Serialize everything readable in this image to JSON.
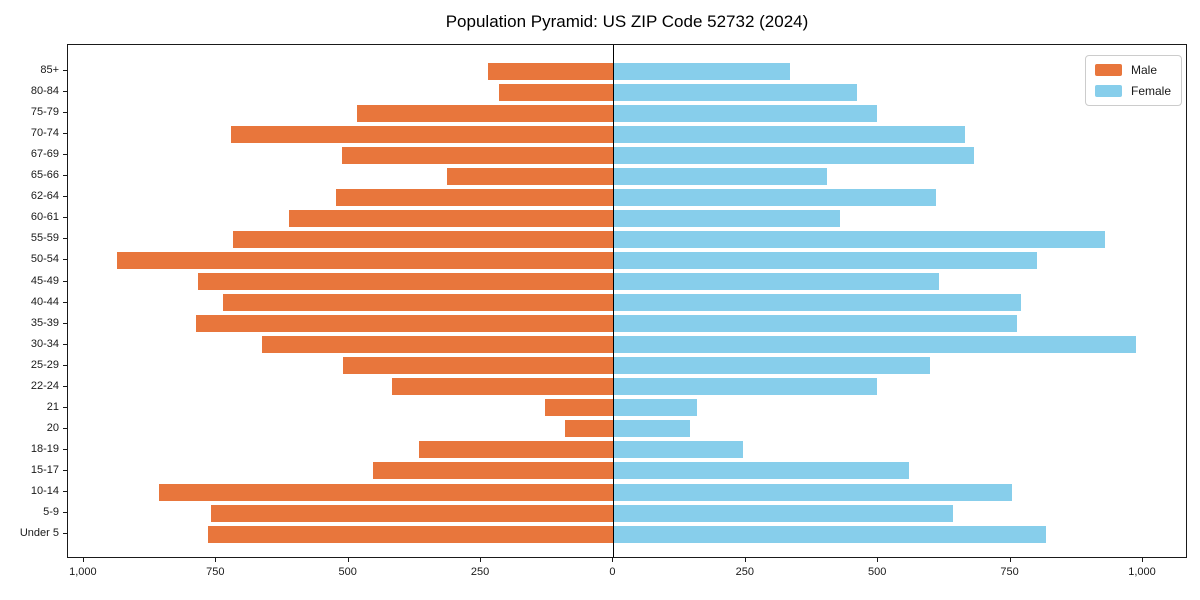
{
  "chart_data": {
    "type": "bar",
    "variant": "population-pyramid-horizontal",
    "title": "Population Pyramid: US ZIP Code 52732 (2024)",
    "categories": [
      "85+",
      "80-84",
      "75-79",
      "70-74",
      "67-69",
      "65-66",
      "62-64",
      "60-61",
      "55-59",
      "50-54",
      "45-49",
      "40-44",
      "35-39",
      "30-34",
      "25-29",
      "22-24",
      "21",
      "20",
      "18-19",
      "15-17",
      "10-14",
      "5-9",
      "Under 5"
    ],
    "series": [
      {
        "name": "Male",
        "side": "left",
        "color": "#E8763C",
        "values": [
          237,
          216,
          484,
          723,
          513,
          315,
          524,
          612,
          718,
          937,
          785,
          737,
          788,
          663,
          511,
          419,
          130,
          91,
          367,
          454,
          858,
          760,
          766
        ]
      },
      {
        "name": "Female",
        "side": "right",
        "color": "#87CEEB",
        "values": [
          333,
          460,
          497,
          663,
          680,
          404,
          609,
          427,
          928,
          799,
          615,
          769,
          763,
          986,
          597,
          497,
          157,
          144,
          244,
          559,
          753,
          642,
          817
        ]
      }
    ],
    "x_axis": {
      "tick_values": [
        -1000,
        -750,
        -500,
        -250,
        0,
        250,
        500,
        750,
        1000
      ],
      "tick_labels": [
        "1,000",
        "750",
        "500",
        "250",
        "0",
        "250",
        "500",
        "750",
        "1,000"
      ],
      "xlim": [
        -1030,
        1085
      ]
    },
    "y_axis": {
      "order": "top-to-bottom"
    },
    "legend": {
      "position": "upper-right",
      "entries": [
        "Male",
        "Female"
      ]
    },
    "grid": false,
    "center_line_color": "#000000",
    "background_color": "#ffffff"
  }
}
